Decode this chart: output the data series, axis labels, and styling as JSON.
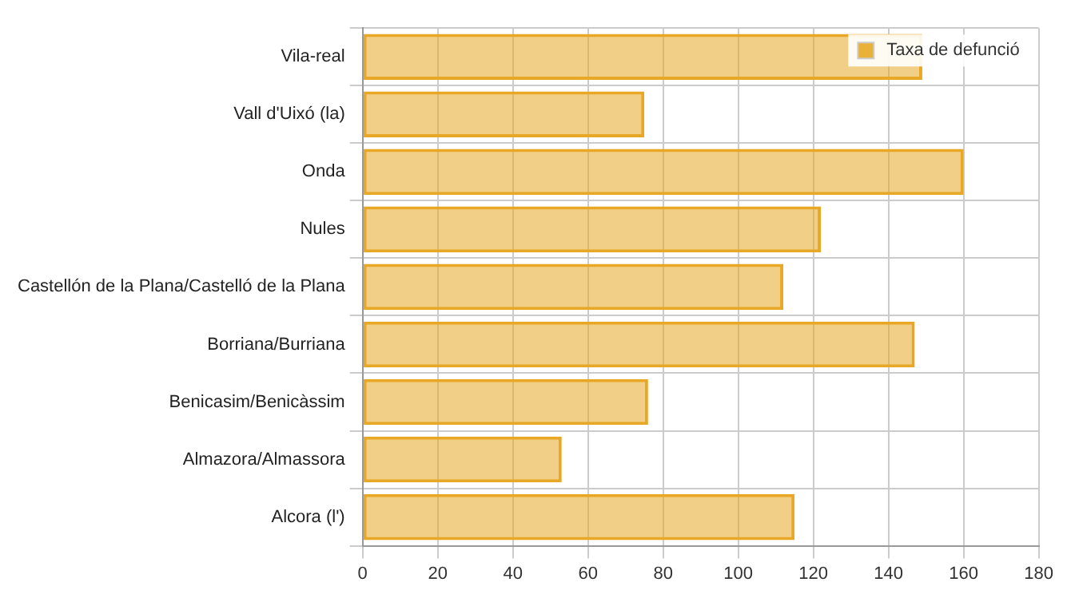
{
  "chart_data": {
    "type": "bar",
    "orientation": "horizontal",
    "categories": [
      "Vila-real",
      "Vall d'Uixó (la)",
      "Onda",
      "Nules",
      "Castellón de la Plana/Castelló de la Plana",
      "Borriana/Burriana",
      "Benicasim/Benicàssim",
      "Almazora/Almassora",
      "Alcora (l')"
    ],
    "series": [
      {
        "name": "Taxa de defunció",
        "color": "#e8a825",
        "values": [
          149,
          75,
          160,
          122,
          112,
          147,
          76,
          53,
          115
        ]
      }
    ],
    "xlim": [
      0,
      180
    ],
    "xticks": [
      0,
      20,
      40,
      60,
      80,
      100,
      120,
      140,
      160,
      180
    ],
    "grid": true,
    "legend": "top right"
  }
}
